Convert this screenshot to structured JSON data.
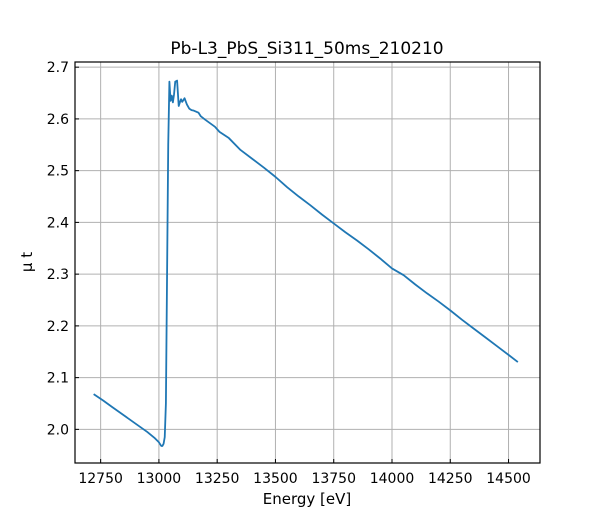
{
  "chart_data": {
    "type": "line",
    "title": "Pb-L3_PbS_Si311_50ms_210210",
    "xlabel": "Energy [eV]",
    "ylabel": "μ t",
    "xlim": [
      12640,
      14635
    ],
    "ylim": [
      1.935,
      2.71
    ],
    "xticks": [
      12750,
      13000,
      13250,
      13500,
      13750,
      14000,
      14250,
      14500
    ],
    "yticks": [
      2.0,
      2.1,
      2.2,
      2.3,
      2.4,
      2.5,
      2.6,
      2.7
    ],
    "grid": true,
    "series": [
      {
        "color": "#1f77b4",
        "x": [
          12720,
          12760,
          12800,
          12850,
          12900,
          12950,
          12980,
          13000,
          13010,
          13015,
          13020,
          13025,
          13030,
          13035,
          13040,
          13045,
          13050,
          13055,
          13060,
          13065,
          13070,
          13078,
          13085,
          13090,
          13095,
          13100,
          13110,
          13120,
          13130,
          13140,
          13150,
          13170,
          13180,
          13200,
          13240,
          13260,
          13300,
          13350,
          13400,
          13450,
          13500,
          13550,
          13600,
          13650,
          13700,
          13750,
          13800,
          13850,
          13900,
          13950,
          14000,
          14050,
          14100,
          14150,
          14200,
          14250,
          14300,
          14350,
          14400,
          14450,
          14500,
          14540
        ],
        "y": [
          2.068,
          2.056,
          2.043,
          2.027,
          2.011,
          1.995,
          1.984,
          1.975,
          1.968,
          1.968,
          1.972,
          1.985,
          2.05,
          2.3,
          2.55,
          2.672,
          2.635,
          2.645,
          2.632,
          2.648,
          2.672,
          2.674,
          2.625,
          2.632,
          2.638,
          2.633,
          2.64,
          2.628,
          2.62,
          2.617,
          2.616,
          2.612,
          2.605,
          2.598,
          2.585,
          2.575,
          2.563,
          2.54,
          2.523,
          2.506,
          2.488,
          2.468,
          2.45,
          2.433,
          2.415,
          2.398,
          2.381,
          2.365,
          2.348,
          2.33,
          2.311,
          2.298,
          2.28,
          2.263,
          2.247,
          2.23,
          2.212,
          2.195,
          2.178,
          2.161,
          2.144,
          2.13
        ]
      }
    ]
  }
}
